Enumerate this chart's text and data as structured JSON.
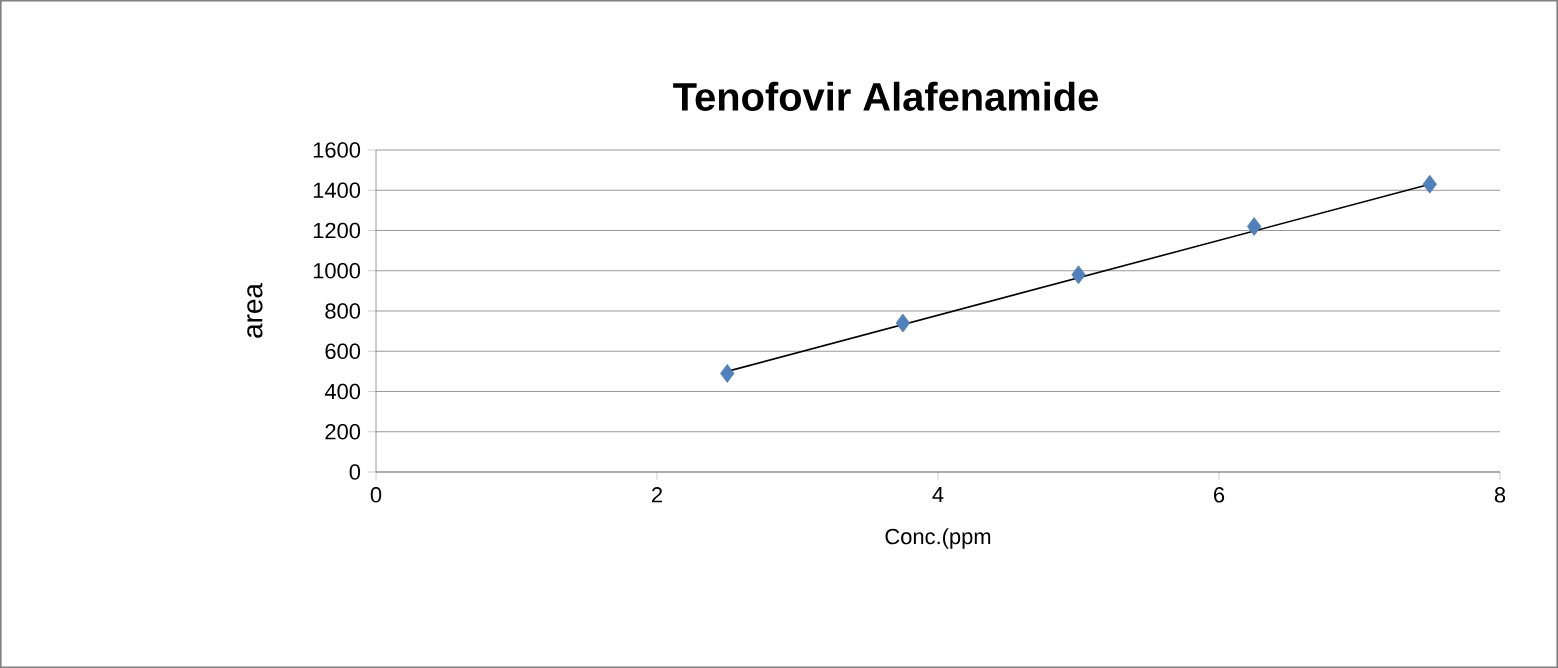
{
  "chart_data": {
    "type": "scatter",
    "title": "Tenofovir Alafenamide",
    "xlabel": "Conc.(ppm",
    "ylabel": "area",
    "xlim": [
      0,
      8
    ],
    "xticks": [
      0,
      2,
      4,
      6,
      8
    ],
    "ylim": [
      0,
      1600
    ],
    "yticks": [
      0,
      200,
      400,
      600,
      800,
      1000,
      1200,
      1400,
      1600
    ],
    "grid": "y",
    "series": [
      {
        "color": "#4f81bd",
        "marker": "diamond",
        "x": [
          2.5,
          3.75,
          5,
          6.25,
          7.5
        ],
        "values": [
          490,
          740,
          980,
          1220,
          1430
        ]
      },
      {
        "type": "line",
        "color": "#000000",
        "marker": "none",
        "line_style": "solid",
        "x": [
          2.5,
          7.5
        ],
        "values": [
          500,
          1430
        ]
      }
    ]
  }
}
